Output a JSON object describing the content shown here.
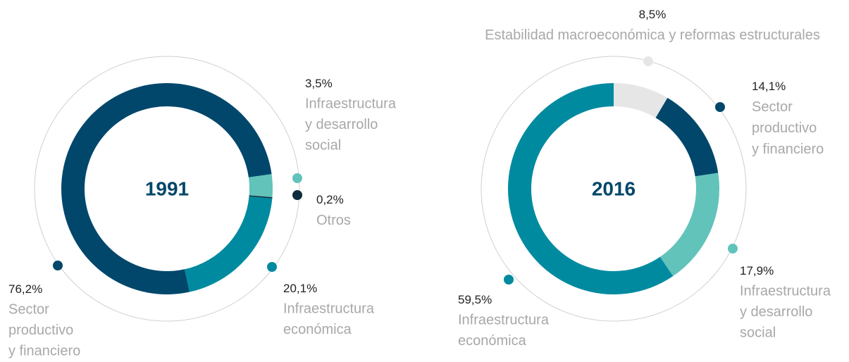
{
  "chart_data": [
    {
      "type": "donut",
      "title": "1991",
      "categories": [
        [
          "Infraestructura",
          "y desarrollo",
          "social"
        ],
        [
          "Otros"
        ],
        [
          "Infraestructura",
          "económica"
        ],
        [
          "Sector",
          "productivo",
          "y financiero"
        ]
      ],
      "values": [
        3.5,
        0.2,
        20.1,
        76.2
      ],
      "value_labels": [
        "3,5%",
        "0,2%",
        "20,1%",
        "76,2%"
      ],
      "colors": [
        "#62c3bb",
        "#0d2d3f",
        "#008aa0",
        "#00476b"
      ]
    },
    {
      "type": "donut",
      "title": "2016",
      "categories": [
        [
          "Estabilidad macroeconómica y reformas estructurales"
        ],
        [
          "Sector",
          "productivo",
          "y financiero"
        ],
        [
          "Infraestructura",
          "y desarrollo",
          "social"
        ],
        [
          "Infraestructura",
          "económica"
        ]
      ],
      "values": [
        8.5,
        14.1,
        17.9,
        59.5
      ],
      "value_labels": [
        "8,5%",
        "14,1%",
        "17,9%",
        "59,5%"
      ],
      "colors": [
        "#e6e6e6",
        "#00476b",
        "#62c3bb",
        "#008aa0"
      ]
    }
  ]
}
